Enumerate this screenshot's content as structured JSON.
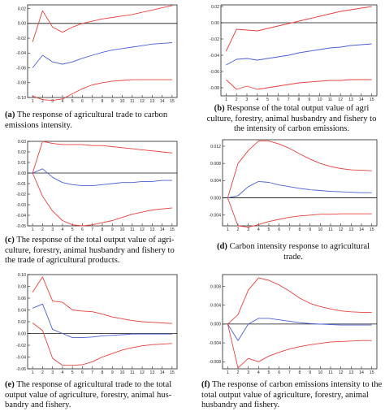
{
  "chart_data": [
    {
      "id": "a",
      "type": "line",
      "caption_letter": "(a)",
      "caption": " The response of agricultural trade to carbon emissions intensity.",
      "x": [
        1,
        2,
        3,
        4,
        5,
        6,
        7,
        8,
        9,
        10,
        11,
        12,
        13,
        14,
        15
      ],
      "ylim": [
        -0.1,
        0.025
      ],
      "yticks": [
        0.02,
        0.0,
        -0.02,
        -0.04,
        -0.06,
        -0.08,
        -0.1
      ],
      "ytick_labels": [
        "0.02",
        "0.00",
        "-0.02",
        "-0.04",
        "-0.06",
        "-0.08",
        "-0.10"
      ],
      "zero_line": true,
      "series": [
        {
          "role": "upper",
          "color": "#e8403c",
          "values": [
            -0.025,
            0.017,
            -0.005,
            -0.012,
            -0.005,
            0.0,
            0.003,
            0.006,
            0.008,
            0.01,
            0.012,
            0.015,
            0.018,
            0.021,
            0.024
          ]
        },
        {
          "role": "response",
          "color": "#4a5fd6",
          "values": [
            -0.06,
            -0.043,
            -0.052,
            -0.055,
            -0.052,
            -0.047,
            -0.043,
            -0.039,
            -0.036,
            -0.034,
            -0.032,
            -0.03,
            -0.028,
            -0.027,
            -0.026
          ]
        },
        {
          "role": "lower",
          "color": "#e8403c",
          "values": [
            -0.098,
            -0.103,
            -0.104,
            -0.102,
            -0.095,
            -0.088,
            -0.083,
            -0.08,
            -0.078,
            -0.077,
            -0.076,
            -0.076,
            -0.076,
            -0.076,
            -0.076
          ]
        }
      ]
    },
    {
      "id": "b",
      "type": "line",
      "caption_letter": "(b)",
      "caption": " Response of the total output value of agri culture, forestry, animal husbandry and fishery to the intensity of carbon emissions.",
      "x": [
        1,
        2,
        3,
        4,
        5,
        6,
        7,
        8,
        9,
        10,
        11,
        12,
        13,
        14,
        15
      ],
      "ylim": [
        -0.09,
        0.022
      ],
      "yticks": [
        0.02,
        0.0,
        -0.02,
        -0.04,
        -0.06,
        -0.08
      ],
      "ytick_labels": [
        "0.02",
        "0.00",
        "-0.02",
        "-0.04",
        "-0.06",
        "-0.08"
      ],
      "zero_line": true,
      "series": [
        {
          "role": "upper",
          "color": "#e8403c",
          "values": [
            -0.035,
            -0.008,
            -0.009,
            -0.01,
            -0.007,
            -0.004,
            -0.001,
            0.002,
            0.005,
            0.008,
            0.011,
            0.014,
            0.016,
            0.018,
            0.02
          ]
        },
        {
          "role": "response",
          "color": "#4a5fd6",
          "values": [
            -0.052,
            -0.045,
            -0.044,
            -0.046,
            -0.044,
            -0.042,
            -0.04,
            -0.037,
            -0.035,
            -0.033,
            -0.031,
            -0.03,
            -0.028,
            -0.027,
            -0.026
          ]
        },
        {
          "role": "lower",
          "color": "#e8403c",
          "values": [
            -0.07,
            -0.082,
            -0.078,
            -0.082,
            -0.08,
            -0.078,
            -0.076,
            -0.074,
            -0.073,
            -0.072,
            -0.071,
            -0.071,
            -0.07,
            -0.07,
            -0.07
          ]
        }
      ]
    },
    {
      "id": "c",
      "type": "line",
      "caption_letter": "(c)",
      "caption": " The response of the total output value of agri-culture, forestry, animal husbandry and fishery to the trade of agricultural products.",
      "x": [
        1,
        2,
        3,
        4,
        5,
        6,
        7,
        8,
        9,
        10,
        11,
        12,
        13,
        14,
        15
      ],
      "ylim": [
        -0.05,
        0.03
      ],
      "yticks": [
        0.03,
        0.02,
        0.01,
        0.0,
        -0.01,
        -0.02,
        -0.03,
        -0.04,
        -0.05
      ],
      "ytick_labels": [
        "0.03",
        "0.02",
        "0.01",
        "0.00",
        "-0.01",
        "-0.02",
        "-0.03",
        "-0.04",
        "-0.05"
      ],
      "zero_line": true,
      "series": [
        {
          "role": "upper",
          "color": "#e8403c",
          "values": [
            0.0,
            0.03,
            0.028,
            0.027,
            0.027,
            0.027,
            0.026,
            0.026,
            0.025,
            0.024,
            0.023,
            0.022,
            0.021,
            0.02,
            0.019
          ]
        },
        {
          "role": "response",
          "color": "#4a5fd6",
          "values": [
            0.0,
            0.004,
            -0.004,
            -0.009,
            -0.011,
            -0.012,
            -0.012,
            -0.011,
            -0.01,
            -0.009,
            -0.009,
            -0.008,
            -0.008,
            -0.007,
            -0.007
          ]
        },
        {
          "role": "lower",
          "color": "#e8403c",
          "values": [
            0.0,
            -0.022,
            -0.036,
            -0.045,
            -0.049,
            -0.05,
            -0.049,
            -0.047,
            -0.045,
            -0.042,
            -0.039,
            -0.037,
            -0.035,
            -0.034,
            -0.033
          ]
        }
      ]
    },
    {
      "id": "d",
      "type": "line",
      "caption_letter": "(d)",
      "caption": " Carbon intensity response to agricultural trade.",
      "x": [
        1,
        2,
        3,
        4,
        5,
        6,
        7,
        8,
        9,
        10,
        11,
        12,
        13,
        14,
        15
      ],
      "ylim": [
        -0.0065,
        0.0135
      ],
      "yticks": [
        0.012,
        0.008,
        0.004,
        0.0,
        -0.004
      ],
      "ytick_labels": [
        "0.012",
        "0.008",
        "0.004",
        "0.000",
        "-0.004"
      ],
      "zero_line": true,
      "series": [
        {
          "role": "upper",
          "color": "#e8403c",
          "values": [
            0.0,
            0.008,
            0.011,
            0.0132,
            0.0132,
            0.0125,
            0.0115,
            0.0102,
            0.009,
            0.008,
            0.0073,
            0.0068,
            0.0065,
            0.0064,
            0.0063
          ]
        },
        {
          "role": "response",
          "color": "#4a5fd6",
          "values": [
            0.0,
            0.0005,
            0.0026,
            0.0038,
            0.0036,
            0.003,
            0.0026,
            0.0022,
            0.0019,
            0.0017,
            0.0015,
            0.0014,
            0.0013,
            0.0012,
            0.0012
          ]
        },
        {
          "role": "lower",
          "color": "#e8403c",
          "values": [
            0.0,
            -0.0065,
            -0.0068,
            -0.0062,
            -0.0055,
            -0.005,
            -0.0045,
            -0.0042,
            -0.004,
            -0.0038,
            -0.0038,
            -0.0037,
            -0.0037,
            -0.0037,
            -0.0037
          ]
        }
      ]
    },
    {
      "id": "e",
      "type": "line",
      "caption_letter": "(e)",
      "caption": " The response of agricultural trade to the total output value of agriculture, forestry, animal hus-bandry and fishery.",
      "x": [
        1,
        2,
        3,
        4,
        5,
        6,
        7,
        8,
        9,
        10,
        11,
        12,
        13,
        14,
        15
      ],
      "ylim": [
        -0.06,
        0.1
      ],
      "yticks": [
        0.1,
        0.08,
        0.06,
        0.04,
        0.02,
        0.0,
        -0.02,
        -0.04,
        -0.06
      ],
      "ytick_labels": [
        "0.10",
        "0.08",
        "0.06",
        "0.04",
        "0.02",
        "0.00",
        "-0.02",
        "-0.04",
        "-0.06"
      ],
      "zero_line": true,
      "series": [
        {
          "role": "upper",
          "color": "#e8403c",
          "values": [
            0.07,
            0.096,
            0.055,
            0.053,
            0.04,
            0.038,
            0.037,
            0.033,
            0.028,
            0.025,
            0.022,
            0.02,
            0.019,
            0.018,
            0.017
          ]
        },
        {
          "role": "response",
          "color": "#4a5fd6",
          "values": [
            0.043,
            0.05,
            0.007,
            0.0,
            -0.007,
            -0.007,
            -0.006,
            -0.004,
            -0.003,
            -0.002,
            -0.001,
            -0.001,
            -0.001,
            -0.001,
            -0.001
          ]
        },
        {
          "role": "lower",
          "color": "#e8403c",
          "values": [
            0.018,
            0.005,
            -0.042,
            -0.054,
            -0.054,
            -0.053,
            -0.048,
            -0.04,
            -0.034,
            -0.028,
            -0.024,
            -0.021,
            -0.019,
            -0.018,
            -0.017
          ]
        }
      ]
    },
    {
      "id": "f",
      "type": "line",
      "caption_letter": "(f)",
      "caption": " The response of carbon emissions intensity to the total output value of agriculture, forestry, animal husbandry and fishery.",
      "x": [
        1,
        2,
        3,
        4,
        5,
        6,
        7,
        8,
        9,
        10,
        11,
        12,
        13,
        14,
        15
      ],
      "ylim": [
        -0.0095,
        0.0105
      ],
      "yticks": [
        0.008,
        0.004,
        0.0,
        -0.004,
        -0.008
      ],
      "ytick_labels": [
        "0.008",
        "0.004",
        "0.000",
        "-0.004",
        "-0.008"
      ],
      "zero_line": true,
      "series": [
        {
          "role": "upper",
          "color": "#e8403c",
          "values": [
            0.0,
            0.002,
            0.0072,
            0.0098,
            0.0093,
            0.0083,
            0.007,
            0.0055,
            0.0044,
            0.0037,
            0.0032,
            0.0028,
            0.0026,
            0.0025,
            0.0025
          ]
        },
        {
          "role": "response",
          "color": "#4a5fd6",
          "values": [
            0.0,
            -0.0035,
            0.0,
            0.0012,
            0.0012,
            0.0009,
            0.0006,
            0.0003,
            0.0001,
            0.0,
            -0.0001,
            -0.0002,
            -0.0002,
            -0.0002,
            -0.0002
          ]
        },
        {
          "role": "lower",
          "color": "#e8403c",
          "values": [
            0.0,
            -0.0093,
            -0.0073,
            -0.008,
            -0.0068,
            -0.006,
            -0.0053,
            -0.0048,
            -0.0044,
            -0.0041,
            -0.0038,
            -0.0037,
            -0.0036,
            -0.0035,
            -0.0035
          ]
        }
      ]
    }
  ]
}
